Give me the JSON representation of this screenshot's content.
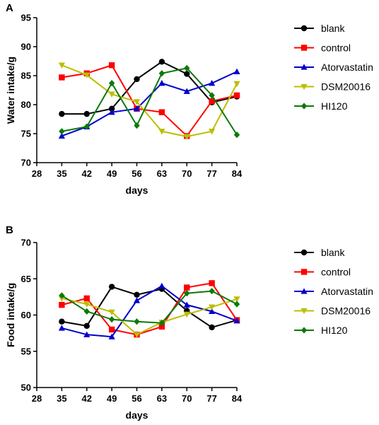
{
  "chart_data": [
    {
      "panel": "A",
      "type": "line",
      "xlabel": "days",
      "ylabel": "Water intake/g",
      "xlim": [
        28,
        84
      ],
      "ylim": [
        70,
        95
      ],
      "x_ticks": [
        "28",
        "35",
        "42",
        "49",
        "56",
        "63",
        "70",
        "77",
        "84"
      ],
      "y_ticks": [
        "70",
        "75",
        "80",
        "85",
        "90",
        "95"
      ],
      "x": [
        35,
        42,
        49,
        56,
        63,
        70,
        77,
        84
      ],
      "grid": false,
      "legend_position": "right",
      "series": [
        {
          "name": "blank",
          "color": "#000000",
          "marker": "circle",
          "values": [
            78.4,
            78.4,
            79.3,
            84.4,
            87.4,
            85.3,
            80.4,
            81.4
          ]
        },
        {
          "name": "control",
          "color": "#ff0000",
          "marker": "square",
          "values": [
            84.7,
            85.4,
            86.8,
            79.3,
            78.7,
            74.6,
            80.6,
            81.6
          ]
        },
        {
          "name": "Atorvastatin",
          "color": "#0000cc",
          "marker": "triangle-up",
          "values": [
            74.6,
            76.2,
            78.7,
            79.3,
            83.7,
            82.3,
            83.7,
            85.7
          ]
        },
        {
          "name": "DSM20016",
          "color": "#bdbd00",
          "marker": "triangle-down",
          "values": [
            86.8,
            85.1,
            81.8,
            80.5,
            75.4,
            74.5,
            75.4,
            83.6
          ]
        },
        {
          "name": "HI120",
          "color": "#0a7a0a",
          "marker": "diamond",
          "values": [
            75.4,
            76.2,
            83.7,
            76.4,
            85.4,
            86.3,
            81.6,
            74.8
          ]
        }
      ]
    },
    {
      "panel": "B",
      "type": "line",
      "xlabel": "days",
      "ylabel": "Food intake/g",
      "xlim": [
        28,
        84
      ],
      "ylim": [
        50,
        70
      ],
      "x_ticks": [
        "28",
        "35",
        "42",
        "49",
        "56",
        "63",
        "70",
        "77",
        "84"
      ],
      "y_ticks": [
        "50",
        "55",
        "60",
        "65",
        "70"
      ],
      "x": [
        35,
        42,
        49,
        56,
        63,
        70,
        77,
        84
      ],
      "grid": false,
      "legend_position": "right",
      "series": [
        {
          "name": "blank",
          "color": "#000000",
          "marker": "circle",
          "values": [
            59.1,
            58.5,
            63.9,
            62.8,
            63.6,
            60.6,
            58.3,
            59.3
          ]
        },
        {
          "name": "control",
          "color": "#ff0000",
          "marker": "square",
          "values": [
            61.4,
            62.3,
            58.0,
            57.3,
            58.4,
            63.8,
            64.4,
            59.3
          ]
        },
        {
          "name": "Atorvastatin",
          "color": "#0000cc",
          "marker": "triangle-up",
          "values": [
            58.2,
            57.3,
            57.0,
            62.0,
            64.0,
            61.4,
            60.5,
            59.2
          ]
        },
        {
          "name": "DSM20016",
          "color": "#bdbd00",
          "marker": "triangle-down",
          "values": [
            62.3,
            61.5,
            60.4,
            57.3,
            59.0,
            60.1,
            61.1,
            62.2
          ]
        },
        {
          "name": "HI120",
          "color": "#0a7a0a",
          "marker": "diamond",
          "values": [
            62.7,
            60.5,
            59.4,
            59.1,
            58.9,
            63.0,
            63.3,
            61.5
          ]
        }
      ]
    }
  ]
}
